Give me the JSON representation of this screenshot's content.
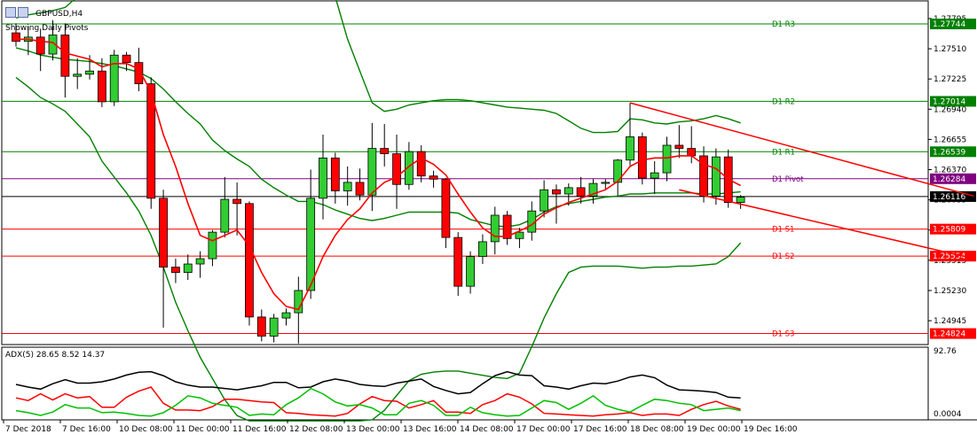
{
  "chart_data": [
    {
      "type": "candlestick",
      "title": "GBPUSD,H4",
      "subtitle": "Showing Daily Pivots",
      "ylim": [
        1.2472,
        1.2797
      ],
      "price_ticks": [
        "1.27795",
        "1.27510",
        "1.27225",
        "1.26940",
        "1.26655",
        "1.26370",
        "1.26085",
        "1.25800",
        "1.25515",
        "1.25230",
        "1.24945"
      ],
      "x_tick_labels": [
        "7 Dec 2018",
        "7 Dec 16:00",
        "10 Dec 08:00",
        "11 Dec 00:00",
        "11 Dec 16:00",
        "12 Dec 08:00",
        "13 Dec 00:00",
        "13 Dec 16:00",
        "14 Dec 08:00",
        "17 Dec 00:00",
        "17 Dec 16:00",
        "18 Dec 08:00",
        "19 Dec 00:00",
        "19 Dec 16:00"
      ],
      "current_price": {
        "label": "1.26116",
        "value": 1.26116
      },
      "pivot_levels": [
        {
          "name": "D1 R3",
          "value": 1.27744,
          "label": "1.27744",
          "color": "#008000"
        },
        {
          "name": "D1 R2",
          "value": 1.27014,
          "label": "1.27014",
          "color": "#008000"
        },
        {
          "name": "D1 R1",
          "value": 1.26539,
          "label": "1.26539",
          "color": "#008000"
        },
        {
          "name": "D1 Pivot",
          "value": 1.26284,
          "label": "1.26284",
          "color": "#800080"
        },
        {
          "name": "D1 S1",
          "value": 1.25809,
          "label": "1.25809",
          "color": "#ff0000"
        },
        {
          "name": "D1 S2",
          "value": 1.25554,
          "label": "1.25554",
          "color": "#ff0000"
        },
        {
          "name": "D1 S3",
          "value": 1.24824,
          "label": "1.24824",
          "color": "#ff0000"
        }
      ],
      "candles": [
        {
          "o": 1.2766,
          "h": 1.2775,
          "l": 1.2753,
          "c": 1.2758
        },
        {
          "o": 1.2758,
          "h": 1.2772,
          "l": 1.2745,
          "c": 1.2762
        },
        {
          "o": 1.2762,
          "h": 1.277,
          "l": 1.273,
          "c": 1.2746
        },
        {
          "o": 1.2746,
          "h": 1.2778,
          "l": 1.274,
          "c": 1.2764
        },
        {
          "o": 1.2764,
          "h": 1.2775,
          "l": 1.2705,
          "c": 1.2725
        },
        {
          "o": 1.2725,
          "h": 1.2742,
          "l": 1.2713,
          "c": 1.2727
        },
        {
          "o": 1.2727,
          "h": 1.2745,
          "l": 1.2722,
          "c": 1.273
        },
        {
          "o": 1.273,
          "h": 1.2742,
          "l": 1.2696,
          "c": 1.2701
        },
        {
          "o": 1.2701,
          "h": 1.275,
          "l": 1.2697,
          "c": 1.2745
        },
        {
          "o": 1.2745,
          "h": 1.2748,
          "l": 1.273,
          "c": 1.2738
        },
        {
          "o": 1.2738,
          "h": 1.2752,
          "l": 1.2711,
          "c": 1.2718
        },
        {
          "o": 1.2718,
          "h": 1.2724,
          "l": 1.26,
          "c": 1.261
        },
        {
          "o": 1.261,
          "h": 1.2618,
          "l": 1.2488,
          "c": 1.2545
        },
        {
          "o": 1.2545,
          "h": 1.2553,
          "l": 1.253,
          "c": 1.254
        },
        {
          "o": 1.254,
          "h": 1.2557,
          "l": 1.2533,
          "c": 1.2548
        },
        {
          "o": 1.2548,
          "h": 1.256,
          "l": 1.2535,
          "c": 1.2553
        },
        {
          "o": 1.2553,
          "h": 1.258,
          "l": 1.2546,
          "c": 1.2578
        },
        {
          "o": 1.2578,
          "h": 1.263,
          "l": 1.2573,
          "c": 1.2609
        },
        {
          "o": 1.2609,
          "h": 1.2625,
          "l": 1.2575,
          "c": 1.2605
        },
        {
          "o": 1.2605,
          "h": 1.2607,
          "l": 1.249,
          "c": 1.2498
        },
        {
          "o": 1.2498,
          "h": 1.2505,
          "l": 1.2475,
          "c": 1.248
        },
        {
          "o": 1.248,
          "h": 1.2501,
          "l": 1.2474,
          "c": 1.2497
        },
        {
          "o": 1.2497,
          "h": 1.2506,
          "l": 1.249,
          "c": 1.2502
        },
        {
          "o": 1.2502,
          "h": 1.2536,
          "l": 1.2473,
          "c": 1.2523
        },
        {
          "o": 1.2523,
          "h": 1.2637,
          "l": 1.2515,
          "c": 1.261
        },
        {
          "o": 1.261,
          "h": 1.267,
          "l": 1.259,
          "c": 1.2648
        },
        {
          "o": 1.2648,
          "h": 1.2653,
          "l": 1.2605,
          "c": 1.2617
        },
        {
          "o": 1.2617,
          "h": 1.264,
          "l": 1.2603,
          "c": 1.2625
        },
        {
          "o": 1.2625,
          "h": 1.2638,
          "l": 1.2608,
          "c": 1.2613
        },
        {
          "o": 1.2613,
          "h": 1.2681,
          "l": 1.2598,
          "c": 1.2657
        },
        {
          "o": 1.2657,
          "h": 1.268,
          "l": 1.264,
          "c": 1.2652
        },
        {
          "o": 1.2652,
          "h": 1.267,
          "l": 1.26,
          "c": 1.2623
        },
        {
          "o": 1.2623,
          "h": 1.2663,
          "l": 1.2618,
          "c": 1.2654
        },
        {
          "o": 1.2654,
          "h": 1.266,
          "l": 1.2625,
          "c": 1.2631
        },
        {
          "o": 1.2631,
          "h": 1.2636,
          "l": 1.262,
          "c": 1.2628
        },
        {
          "o": 1.2628,
          "h": 1.2629,
          "l": 1.2563,
          "c": 1.2573
        },
        {
          "o": 1.2573,
          "h": 1.2578,
          "l": 1.2518,
          "c": 1.2527
        },
        {
          "o": 1.2527,
          "h": 1.256,
          "l": 1.252,
          "c": 1.2555
        },
        {
          "o": 1.2555,
          "h": 1.2576,
          "l": 1.2548,
          "c": 1.2569
        },
        {
          "o": 1.2569,
          "h": 1.2602,
          "l": 1.2557,
          "c": 1.2594
        },
        {
          "o": 1.2594,
          "h": 1.2598,
          "l": 1.2566,
          "c": 1.2572
        },
        {
          "o": 1.2572,
          "h": 1.2582,
          "l": 1.2563,
          "c": 1.2578
        },
        {
          "o": 1.2578,
          "h": 1.2607,
          "l": 1.257,
          "c": 1.2598
        },
        {
          "o": 1.2598,
          "h": 1.2627,
          "l": 1.2592,
          "c": 1.2618
        },
        {
          "o": 1.2618,
          "h": 1.2623,
          "l": 1.2586,
          "c": 1.2614
        },
        {
          "o": 1.2614,
          "h": 1.2624,
          "l": 1.2603,
          "c": 1.262
        },
        {
          "o": 1.262,
          "h": 1.263,
          "l": 1.2605,
          "c": 1.2612
        },
        {
          "o": 1.2612,
          "h": 1.2628,
          "l": 1.2605,
          "c": 1.2624
        },
        {
          "o": 1.2624,
          "h": 1.2628,
          "l": 1.2618,
          "c": 1.2625
        },
        {
          "o": 1.2625,
          "h": 1.2647,
          "l": 1.2612,
          "c": 1.2646
        },
        {
          "o": 1.2646,
          "h": 1.27,
          "l": 1.2641,
          "c": 1.2668
        },
        {
          "o": 1.2668,
          "h": 1.2672,
          "l": 1.2623,
          "c": 1.2629
        },
        {
          "o": 1.2629,
          "h": 1.2645,
          "l": 1.2614,
          "c": 1.2634
        },
        {
          "o": 1.2634,
          "h": 1.2668,
          "l": 1.2626,
          "c": 1.266
        },
        {
          "o": 1.266,
          "h": 1.2679,
          "l": 1.2648,
          "c": 1.2657
        },
        {
          "o": 1.2657,
          "h": 1.2678,
          "l": 1.2643,
          "c": 1.265
        },
        {
          "o": 1.265,
          "h": 1.2659,
          "l": 1.2606,
          "c": 1.2612
        },
        {
          "o": 1.2612,
          "h": 1.2657,
          "l": 1.2604,
          "c": 1.2649
        },
        {
          "o": 1.2649,
          "h": 1.2656,
          "l": 1.2601,
          "c": 1.2606
        },
        {
          "o": 1.2606,
          "h": 1.2613,
          "l": 1.26,
          "c": 1.2611
        }
      ],
      "bollinger": {
        "color": "#008000",
        "upper": [
          1.278,
          1.2783,
          1.2785,
          1.2787,
          1.279,
          1.28,
          1.281,
          1.283,
          1.284,
          1.285,
          1.286,
          1.287,
          1.288,
          1.289,
          1.2895,
          1.29,
          1.2902,
          1.2902,
          1.2902,
          1.2902,
          1.2902,
          1.2902,
          1.2902,
          1.2902,
          1.2902,
          1.285,
          1.28,
          1.276,
          1.273,
          1.27,
          1.2692,
          1.2694,
          1.2698,
          1.27,
          1.2702,
          1.2703,
          1.2703,
          1.2702,
          1.27,
          1.2698,
          1.2696,
          1.2695,
          1.2694,
          1.2693,
          1.269,
          1.2683,
          1.2676,
          1.2672,
          1.2672,
          1.2673,
          1.2685,
          1.2684,
          1.2681,
          1.268,
          1.2682,
          1.2683,
          1.2685,
          1.2688,
          1.2685,
          1.2681
        ],
        "middle": [
          1.2752,
          1.2749,
          1.2745,
          1.2743,
          1.2741,
          1.274,
          1.2739,
          1.2737,
          1.2735,
          1.2732,
          1.2729,
          1.2723,
          1.2713,
          1.2701,
          1.269,
          1.268,
          1.2665,
          1.2655,
          1.2647,
          1.264,
          1.2628,
          1.262,
          1.2613,
          1.2607,
          1.2607,
          1.2604,
          1.2599,
          1.2595,
          1.2591,
          1.2589,
          1.2591,
          1.2594,
          1.2597,
          1.2597,
          1.2597,
          1.2597,
          1.2596,
          1.259,
          1.2587,
          1.2584,
          1.2583,
          1.2585,
          1.259,
          1.2597,
          1.2602,
          1.2605,
          1.2607,
          1.2609,
          1.2611,
          1.2612,
          1.2614,
          1.2614,
          1.2615,
          1.2615,
          1.2615,
          1.2615,
          1.2614,
          1.2614,
          1.2615,
          1.2616
        ],
        "lower": [
          1.2724,
          1.2715,
          1.2705,
          1.2699,
          1.2692,
          1.268,
          1.2668,
          1.2645,
          1.263,
          1.2615,
          1.2598,
          1.2575,
          1.2545,
          1.2512,
          1.2485,
          1.246,
          1.244,
          1.242,
          1.2405,
          1.24,
          1.24,
          1.24,
          1.24,
          1.24,
          1.24,
          1.24,
          1.24,
          1.24,
          1.24,
          1.2401,
          1.241,
          1.2424,
          1.2438,
          1.2444,
          1.2446,
          1.2447,
          1.2447,
          1.2445,
          1.2443,
          1.2441,
          1.244,
          1.2445,
          1.247,
          1.2497,
          1.252,
          1.254,
          1.2545,
          1.2546,
          1.2546,
          1.2546,
          1.2545,
          1.2544,
          1.2545,
          1.2545,
          1.2546,
          1.2546,
          1.2547,
          1.2548,
          1.2555,
          1.2568
        ]
      },
      "moving_average": {
        "color": "#ff0000",
        "values": [
          1.276,
          1.276,
          1.2758,
          1.2757,
          1.2747,
          1.2744,
          1.2741,
          1.2734,
          1.2737,
          1.2737,
          1.2732,
          1.271,
          1.267,
          1.264,
          1.2605,
          1.2575,
          1.257,
          1.2575,
          1.258,
          1.2565,
          1.254,
          1.252,
          1.2508,
          1.2505,
          1.2528,
          1.2555,
          1.2575,
          1.259,
          1.26,
          1.2615,
          1.2625,
          1.263,
          1.264,
          1.2648,
          1.2642,
          1.2632,
          1.2614,
          1.2597,
          1.2582,
          1.2574,
          1.2574,
          1.2579,
          1.2585,
          1.2595,
          1.2601,
          1.2606,
          1.261,
          1.2614,
          1.2618,
          1.2626,
          1.264,
          1.2646,
          1.2648,
          1.2648,
          1.265,
          1.265,
          1.2642,
          1.2638,
          1.2628,
          1.2622
        ]
      },
      "trendlines": [
        {
          "from": {
            "index": 50,
            "value": 1.27
          },
          "to": {
            "index": 78,
            "value": 1.2612
          },
          "color": "#ff0000"
        },
        {
          "from": {
            "index": 54,
            "value": 1.2618
          },
          "to": {
            "index": 78,
            "value": 1.2553
          },
          "color": "#ff0000"
        }
      ]
    },
    {
      "type": "line",
      "title": "ADX(5) 28.65 8.52 14.37",
      "ylim": [
        0,
        100
      ],
      "y_ticks": [
        "92.76",
        "0.0004"
      ],
      "series": [
        {
          "color": "#000000",
          "values": [
            50,
            46,
            43,
            51,
            57,
            52,
            52,
            54,
            58,
            64,
            68,
            69,
            63,
            54,
            49,
            46,
            46,
            44,
            42,
            45,
            48,
            53,
            53,
            45,
            46,
            54,
            58,
            55,
            50,
            48,
            47,
            52,
            55,
            58,
            47,
            41,
            36,
            38,
            51,
            63,
            69,
            64,
            63,
            48,
            46,
            43,
            48,
            52,
            51,
            55,
            61,
            64,
            60,
            49,
            42,
            41,
            40,
            38,
            31,
            30
          ]
        },
        {
          "color": "#ff0000",
          "values": [
            30,
            26,
            36,
            27,
            36,
            30,
            32,
            16,
            16,
            31,
            40,
            46,
            22,
            12,
            12,
            11,
            17,
            28,
            28,
            26,
            24,
            23,
            8,
            7,
            5,
            4,
            3,
            7,
            21,
            32,
            26,
            25,
            15,
            20,
            26,
            9,
            9,
            7,
            20,
            26,
            36,
            31,
            21,
            7,
            6,
            5,
            4,
            3,
            5,
            6,
            8,
            4,
            6,
            6,
            4,
            13,
            20,
            25,
            18,
            13
          ]
        },
        {
          "color": "#00c000",
          "values": [
            11,
            8,
            4,
            9,
            20,
            15,
            15,
            8,
            9,
            7,
            4,
            3,
            8,
            19,
            33,
            30,
            22,
            19,
            16,
            4,
            6,
            5,
            20,
            30,
            44,
            36,
            24,
            18,
            20,
            15,
            5,
            5,
            22,
            26,
            19,
            4,
            4,
            16,
            8,
            5,
            3,
            4,
            15,
            26,
            23,
            13,
            22,
            33,
            19,
            13,
            9,
            19,
            28,
            26,
            22,
            20,
            11,
            13,
            15,
            11
          ]
        }
      ]
    }
  ]
}
